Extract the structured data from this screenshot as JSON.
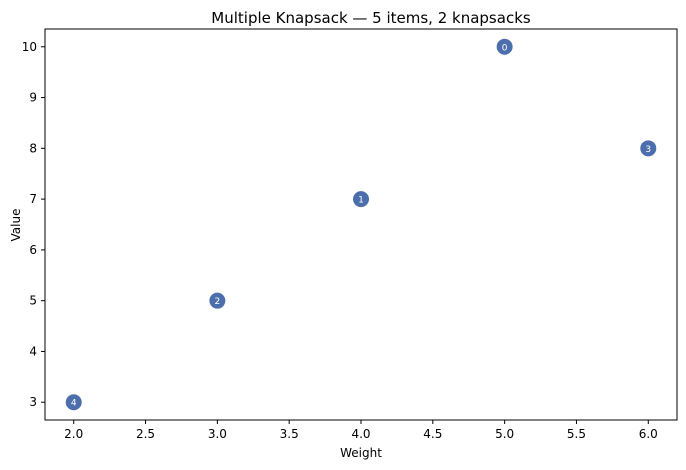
{
  "chart_data": {
    "type": "scatter",
    "title": "Multiple Knapsack — 5 items, 2 knapsacks",
    "xlabel": "Weight",
    "ylabel": "Value",
    "xlim": [
      1.8,
      6.2
    ],
    "ylim": [
      2.65,
      10.35
    ],
    "xticks": [
      "2.0",
      "2.5",
      "3.0",
      "3.5",
      "4.0",
      "4.5",
      "5.0",
      "5.5",
      "6.0"
    ],
    "yticks": [
      "3",
      "4",
      "5",
      "6",
      "7",
      "8",
      "9",
      "10"
    ],
    "grid": false,
    "point_color": "#4c6ead",
    "points": [
      {
        "label": "0",
        "x": 5,
        "y": 10
      },
      {
        "label": "1",
        "x": 4,
        "y": 7
      },
      {
        "label": "2",
        "x": 3,
        "y": 5
      },
      {
        "label": "3",
        "x": 6,
        "y": 8
      },
      {
        "label": "4",
        "x": 2,
        "y": 3
      }
    ]
  }
}
